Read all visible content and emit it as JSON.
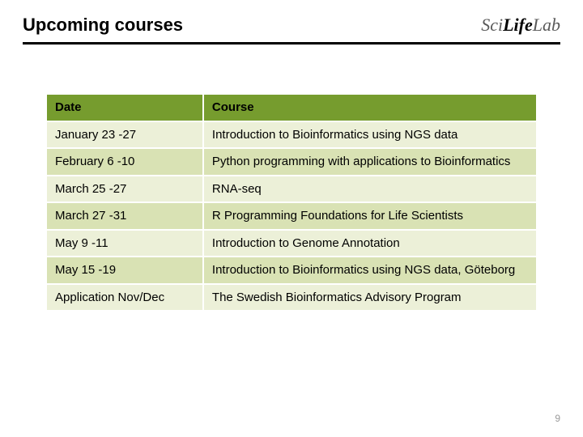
{
  "header": {
    "title": "Upcoming courses",
    "logo": {
      "sci": "Sci",
      "life": "Life",
      "lab": "Lab"
    }
  },
  "table": {
    "type": "table",
    "columns": [
      "Date",
      "Course"
    ],
    "rows": [
      [
        "January 23 -27",
        "Introduction to Bioinformatics using NGS data"
      ],
      [
        "February 6 -10",
        "Python programming with applications to Bioinformatics"
      ],
      [
        "March 25 -27",
        "RNA-seq"
      ],
      [
        "March 27 -31",
        "R Programming Foundations for Life Scientists"
      ],
      [
        "May 9 -11",
        "Introduction to Genome Annotation"
      ],
      [
        "May 15 -19",
        "Introduction to Bioinformatics using NGS data, Göteborg"
      ],
      [
        "Application Nov/Dec",
        "The Swedish Bioinformatics Advisory Program"
      ]
    ],
    "header_bg": "#769c2e",
    "row_odd_bg": "#ecf0d8",
    "row_even_bg": "#d9e2b4",
    "border_color": "#ffffff",
    "col_widths_pct": [
      32,
      68
    ],
    "font_size": 15
  },
  "page_number": "9",
  "colors": {
    "text": "#000000",
    "page_number": "#9a9a9a",
    "rule": "#000000",
    "background": "#ffffff"
  }
}
